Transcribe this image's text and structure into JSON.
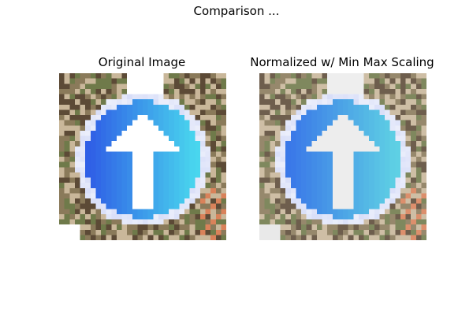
{
  "figure": {
    "suptitle": "Comparison ..."
  },
  "panels": [
    {
      "title": "Original Image",
      "variant": "original",
      "description": ""
    },
    {
      "title": "Normalized w/ Min Max Scaling",
      "variant": "normalized",
      "description": ""
    }
  ],
  "palette": {
    "background_warm": "#8a7a5a",
    "background_dark": "#5c4a36",
    "background_light": "#c9b79a",
    "foliage": "#6f7a4a",
    "rim": "#d8def8",
    "disc_blue": "#2f5fe6",
    "disc_cyan": "#49d6ee",
    "arrow": "#ffffff",
    "normalized_blue": "#3a78e8",
    "normalized_cyan": "#5ed0e4",
    "normalized_arrow": "#ededed"
  }
}
